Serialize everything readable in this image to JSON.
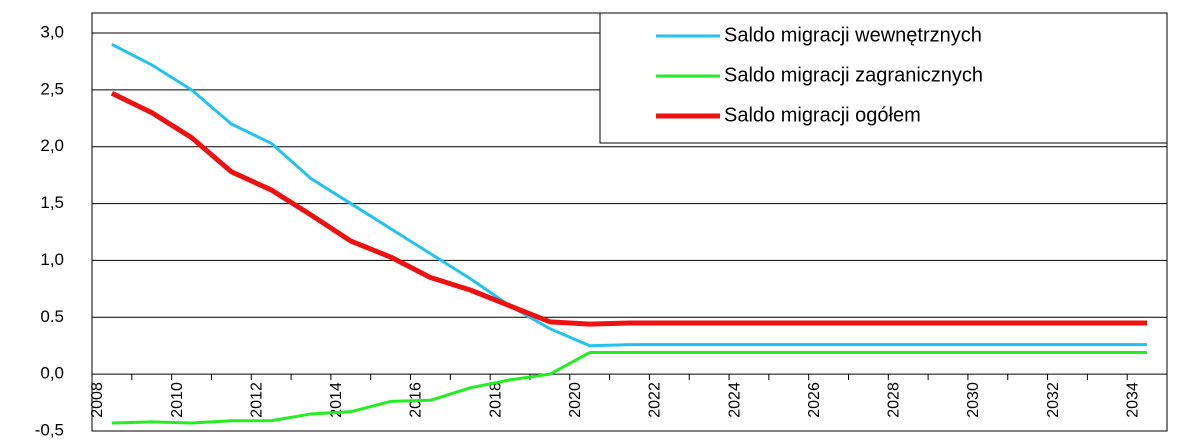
{
  "chart_data": {
    "type": "line",
    "categories": [
      "2008",
      null,
      "2010",
      null,
      "2012",
      null,
      "2014",
      null,
      "2016",
      null,
      "2018",
      null,
      "2020",
      null,
      "2022",
      null,
      "2024",
      null,
      "2026",
      null,
      "2028",
      null,
      "2030",
      null,
      "2032",
      null,
      "2034"
    ],
    "series": [
      {
        "name": "Saldo migracji wewnętrznych",
        "color": "#22c3f0",
        "values": [
          2.9,
          2.72,
          2.5,
          2.2,
          2.03,
          1.72,
          1.5,
          1.28,
          1.06,
          0.84,
          0.6,
          0.4,
          0.25,
          0.26,
          0.26,
          0.26,
          0.26,
          0.26,
          0.26,
          0.26,
          0.26,
          0.26,
          0.26,
          0.26,
          0.26,
          0.26,
          0.26
        ]
      },
      {
        "name": "Saldo migracji zagranicznych",
        "color": "#22ee22",
        "values": [
          -0.43,
          -0.42,
          -0.43,
          -0.41,
          -0.41,
          -0.35,
          -0.33,
          -0.24,
          -0.23,
          -0.12,
          -0.05,
          0.0,
          0.19,
          0.19,
          0.19,
          0.19,
          0.19,
          0.19,
          0.19,
          0.19,
          0.19,
          0.19,
          0.19,
          0.19,
          0.19,
          0.19,
          0.19
        ]
      },
      {
        "name": "Saldo migracji ogółem",
        "color": "#ee1111",
        "values": [
          2.47,
          2.3,
          2.08,
          1.78,
          1.62,
          1.4,
          1.17,
          1.03,
          0.85,
          0.74,
          0.6,
          0.46,
          0.44,
          0.45,
          0.45,
          0.45,
          0.45,
          0.45,
          0.45,
          0.45,
          0.45,
          0.45,
          0.45,
          0.45,
          0.45,
          0.45,
          0.45
        ]
      }
    ],
    "ylim": [
      -0.5,
      3.0
    ],
    "yticks": [
      {
        "value": -0.5,
        "label": "-0,5"
      },
      {
        "value": 0,
        "label": "0,0"
      },
      0.5,
      {
        "value": 1.0,
        "label": "1,0"
      },
      {
        "value": 1.5,
        "label": "1,5"
      },
      {
        "value": 2.0,
        "label": "2,0"
      },
      {
        "value": 2.5,
        "label": "2,5"
      },
      {
        "value": 3.0,
        "label": "3,0"
      }
    ],
    "grid": true,
    "legend": "top-right"
  }
}
